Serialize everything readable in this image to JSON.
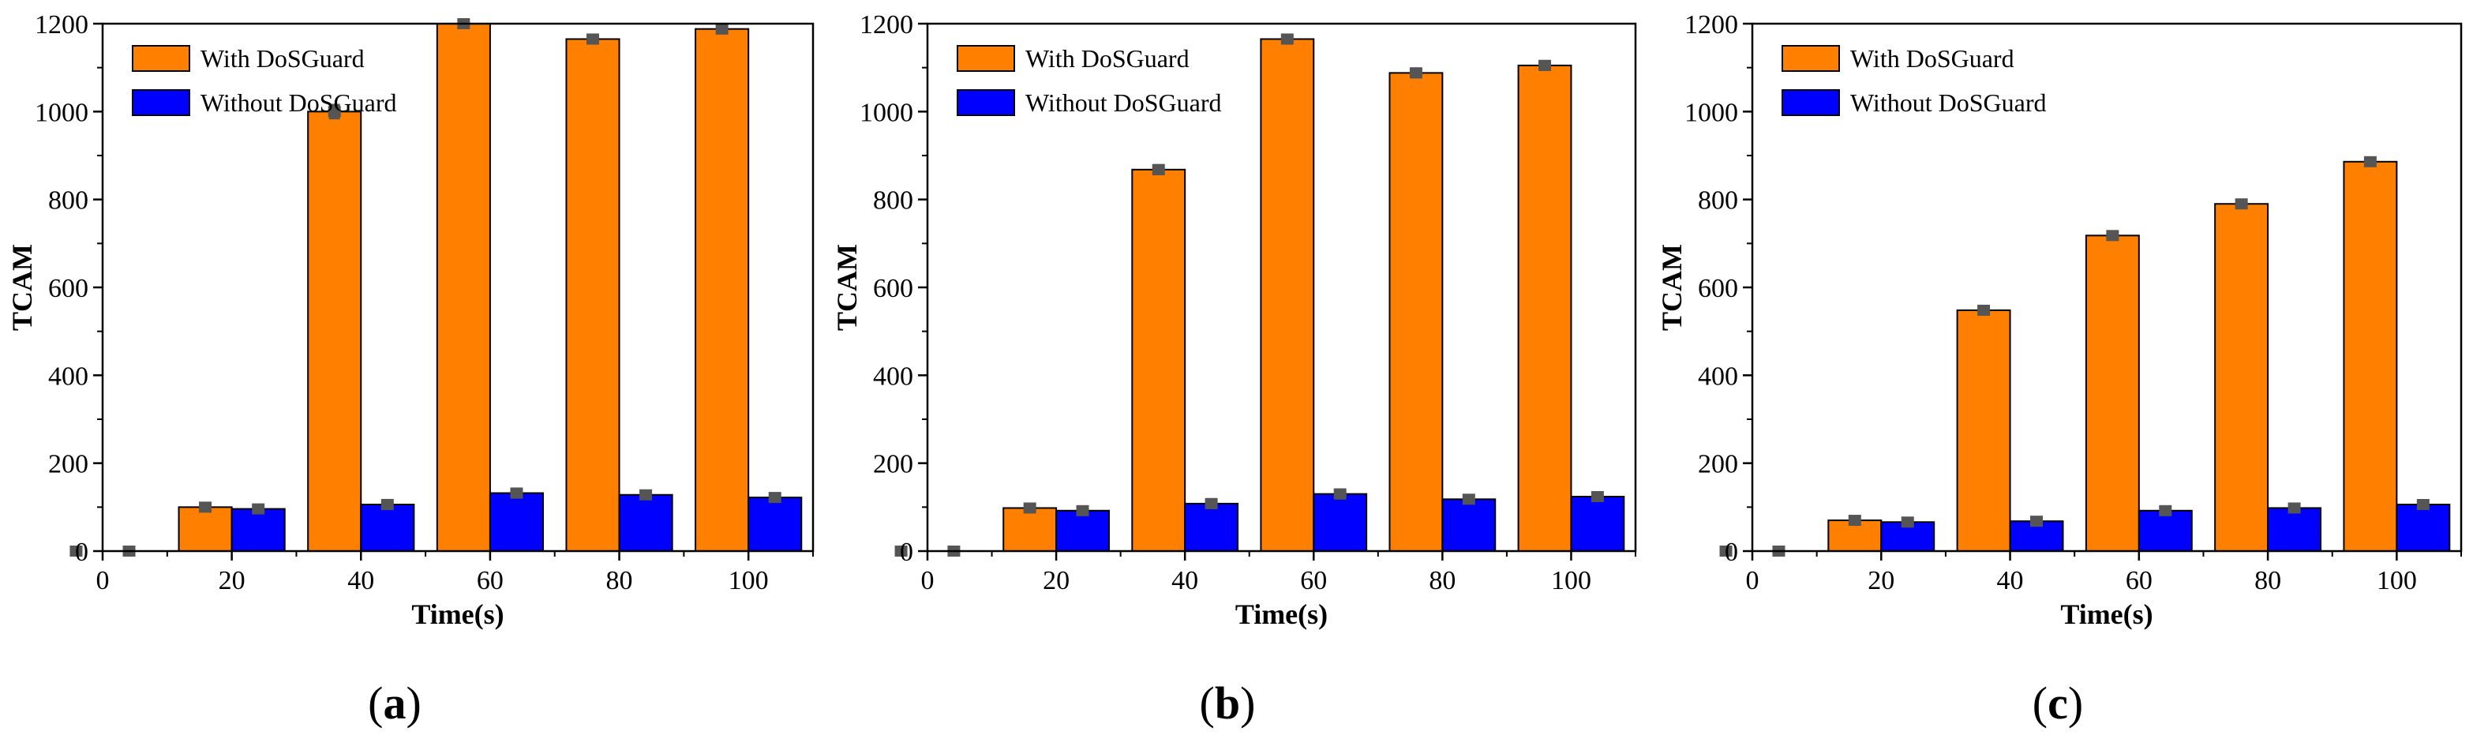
{
  "figure": {
    "colors": {
      "with": "#FF8000",
      "without": "#0000FF",
      "error_bar": "#555555",
      "bar_stroke": "#000000",
      "axis": "#000000"
    }
  },
  "chart_data": [
    {
      "type": "bar",
      "panel_label": "a",
      "xlabel": "Time(s)",
      "ylabel": "TCAM",
      "xlim": [
        0,
        110
      ],
      "ylim": [
        0,
        1200
      ],
      "xticks": [
        0,
        20,
        40,
        60,
        80,
        100
      ],
      "xtick_labels": [
        "0",
        "20",
        "40",
        "60",
        "80",
        "100"
      ],
      "yticks": [
        0,
        200,
        400,
        600,
        800,
        1000,
        1200
      ],
      "ytick_labels": [
        "0",
        "200",
        "400",
        "600",
        "800",
        "1000",
        "1200"
      ],
      "legend_position": "top-left",
      "x": [
        0,
        20,
        40,
        60,
        80,
        100
      ],
      "series": [
        {
          "name": "With DoSGuard",
          "values": [
            0,
            100,
            1000,
            1200,
            1165,
            1188
          ],
          "errors": [
            0,
            8,
            15,
            8,
            10,
            10
          ]
        },
        {
          "name": "Without DoSGuard",
          "values": [
            0,
            96,
            106,
            132,
            128,
            122
          ],
          "errors": [
            0,
            8,
            10,
            10,
            8,
            8
          ]
        }
      ]
    },
    {
      "type": "bar",
      "panel_label": "b",
      "xlabel": "Time(s)",
      "ylabel": "TCAM",
      "xlim": [
        0,
        110
      ],
      "ylim": [
        0,
        1200
      ],
      "xticks": [
        0,
        20,
        40,
        60,
        80,
        100
      ],
      "xtick_labels": [
        "0",
        "20",
        "40",
        "60",
        "80",
        "100"
      ],
      "yticks": [
        0,
        200,
        400,
        600,
        800,
        1000,
        1200
      ],
      "ytick_labels": [
        "0",
        "200",
        "400",
        "600",
        "800",
        "1000",
        "1200"
      ],
      "legend_position": "top-left",
      "x": [
        0,
        20,
        40,
        60,
        80,
        100
      ],
      "series": [
        {
          "name": "With DoSGuard",
          "values": [
            0,
            98,
            868,
            1165,
            1088,
            1105
          ],
          "errors": [
            0,
            8,
            10,
            10,
            10,
            10
          ]
        },
        {
          "name": "Without DoSGuard",
          "values": [
            0,
            92,
            108,
            130,
            118,
            124
          ],
          "errors": [
            0,
            8,
            10,
            10,
            8,
            8
          ]
        }
      ]
    },
    {
      "type": "bar",
      "panel_label": "c",
      "xlabel": "Time(s)",
      "ylabel": "TCAM",
      "xlim": [
        0,
        110
      ],
      "ylim": [
        0,
        1200
      ],
      "xticks": [
        0,
        20,
        40,
        60,
        80,
        100
      ],
      "xtick_labels": [
        "0",
        "20",
        "40",
        "60",
        "80",
        "100"
      ],
      "yticks": [
        0,
        200,
        400,
        600,
        800,
        1000,
        1200
      ],
      "ytick_labels": [
        "0",
        "200",
        "400",
        "600",
        "800",
        "1000",
        "1200"
      ],
      "legend_position": "top-left",
      "x": [
        0,
        20,
        40,
        60,
        80,
        100
      ],
      "series": [
        {
          "name": "With DoSGuard",
          "values": [
            0,
            70,
            548,
            718,
            790,
            886
          ],
          "errors": [
            0,
            8,
            8,
            8,
            8,
            8
          ]
        },
        {
          "name": "Without DoSGuard",
          "values": [
            0,
            66,
            68,
            92,
            98,
            106
          ],
          "errors": [
            0,
            8,
            8,
            8,
            8,
            8
          ]
        }
      ]
    }
  ]
}
